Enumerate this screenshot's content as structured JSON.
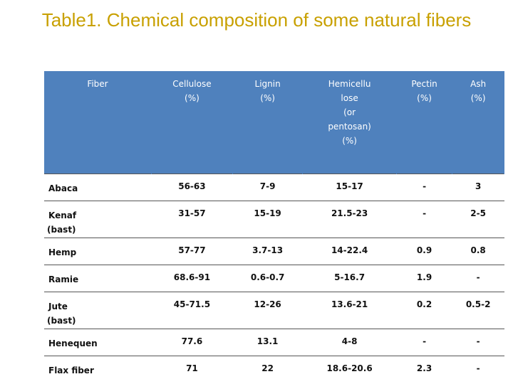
{
  "title": "Table1. Chemical composition of some natural fibers",
  "table": {
    "header": [
      [
        "Fiber"
      ],
      [
        "Cellulose",
        "(%)"
      ],
      [
        "Lignin",
        "(%)"
      ],
      [
        "Hemicellu",
        "lose",
        "(or",
        "pentosan)",
        "(%)"
      ],
      [
        "Pectin",
        "(%)"
      ],
      [
        "Ash",
        "(%)"
      ]
    ],
    "rows": [
      [
        [
          "Abaca"
        ],
        "56-63",
        "7-9",
        "15-17",
        "-",
        "3"
      ],
      [
        [
          "Kenaf",
          "(bast)"
        ],
        "31-57",
        "15-19",
        "21.5-23",
        "-",
        "2-5"
      ],
      [
        [
          "Hemp"
        ],
        "57-77",
        "3.7-13",
        "14-22.4",
        "0.9",
        "0.8"
      ],
      [
        [
          "Ramie"
        ],
        "68.6-91",
        "0.6-0.7",
        "5-16.7",
        "1.9",
        "-"
      ],
      [
        [
          "Jute",
          "(bast)"
        ],
        "45-71.5",
        "12-26",
        "13.6-21",
        "0.2",
        "0.5-2"
      ],
      [
        [
          "Henequen"
        ],
        "77.6",
        "13.1",
        "4-8",
        "-",
        "-"
      ],
      [
        [
          "Flax fiber"
        ],
        "71",
        "22",
        "18.6-20.6",
        "2.3",
        "-"
      ]
    ]
  }
}
